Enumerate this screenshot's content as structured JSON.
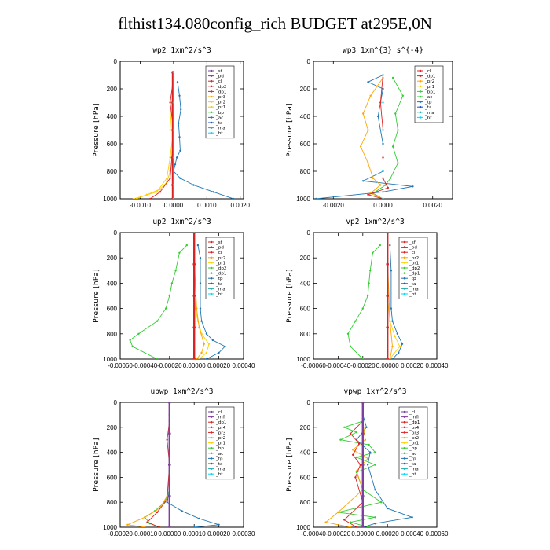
{
  "title": "flthist134.080config_rich  BUDGET at295E,0N",
  "chart_data": [
    {
      "type": "line",
      "title": "wp2  1xm^2/s^3",
      "ylabel": "Pressure [hPa]",
      "ylim": [
        1000,
        0
      ],
      "yticks": [
        0,
        200,
        400,
        600,
        800,
        1000
      ],
      "xlim": [
        -0.0016,
        0.0021
      ],
      "xticks": [
        -0.001,
        0.0,
        0.001,
        0.002
      ],
      "xticklabels": [
        "-0.0010",
        "0.0000",
        "0.0010",
        "0.0020"
      ],
      "legend": [
        "_sf",
        "_pd",
        "_cl",
        "_dp2",
        "_dp1",
        "_pr3",
        "_pr2",
        "_pr1",
        "_bp",
        "_ac",
        "_ta",
        "_ma",
        "_bt"
      ],
      "colors": [
        "#7f3f9f",
        "#7f3f9f",
        "#dd2222",
        "#dd2222",
        "#dd2222",
        "#ffa500",
        "#ffd200",
        "#ffc800",
        "#33cc33",
        "#1f77b4",
        "#1f4fd0",
        "#20b0b0",
        "#00d8ff"
      ],
      "series": [
        {
          "name": "_ac",
          "x": [
            0.00012,
            0.00018,
            0.00022,
            0.00015,
            0.00018,
            0.0002,
            0.0001,
            5e-05,
            0.0,
            0.0002,
            0.0006,
            0.0012,
            0.0018
          ],
          "y": [
            150,
            250,
            350,
            450,
            550,
            650,
            700,
            750,
            800,
            850,
            900,
            950,
            1000
          ]
        },
        {
          "name": "_pr1",
          "x": [
            0.0,
            0.0,
            0.0,
            -0.0001,
            -0.0001,
            -0.0002,
            -0.0004,
            -0.0008,
            -0.0011
          ],
          "y": [
            120,
            300,
            500,
            700,
            800,
            880,
            930,
            970,
            1000
          ]
        },
        {
          "name": "_pr2",
          "x": [
            0.0,
            -5e-05,
            -0.0001,
            -0.0001,
            -0.0002,
            -0.0005,
            -0.0012
          ],
          "y": [
            120,
            300,
            500,
            700,
            850,
            950,
            1000
          ]
        },
        {
          "name": "_dp1",
          "x": [
            0.0,
            -0.0001,
            0.0,
            -5e-05,
            -0.0001,
            -0.0004,
            -0.0007
          ],
          "y": [
            120,
            300,
            500,
            700,
            850,
            950,
            1000
          ]
        },
        {
          "name": "_cl",
          "x": [
            -2e-05,
            -2e-05,
            -2e-05,
            -2e-05,
            -2e-05,
            -2e-05
          ],
          "y": [
            80,
            300,
            500,
            700,
            900,
            1000
          ]
        },
        {
          "name": "_bt",
          "x": [
            0.0,
            0.0,
            0.0,
            0.0,
            0.0,
            0.0
          ],
          "y": [
            80,
            300,
            500,
            700,
            900,
            1000
          ]
        }
      ]
    },
    {
      "type": "line",
      "title": "wp3  1xm^{3} s^{-4}",
      "ylabel": "Pressure [hPa]",
      "ylim": [
        1000,
        0
      ],
      "yticks": [
        0,
        200,
        400,
        600,
        800,
        1000
      ],
      "xlim": [
        -0.0028,
        0.0028
      ],
      "xticks": [
        -0.002,
        0.0,
        0.002
      ],
      "xticklabels": [
        "-0.0020",
        "0.0000",
        "0.0020"
      ],
      "legend": [
        "_cl",
        "_dp1",
        "_pr2",
        "_pr1",
        "_bp1",
        "_ac",
        "_tp",
        "_ta",
        "_ma",
        "_bt"
      ],
      "colors": [
        "#dd2222",
        "#dd2222",
        "#ffa500",
        "#ffd200",
        "#33cc33",
        "#33cc33",
        "#1f77b4",
        "#1f4fd0",
        "#20b0b0",
        "#00d8ff"
      ],
      "series": [
        {
          "name": "_ac",
          "x": [
            0.0004,
            0.0008,
            0.0005,
            0.0006,
            0.0004,
            0.0006,
            0.0003,
            0.0001,
            -0.0004,
            0.0
          ],
          "y": [
            120,
            250,
            380,
            500,
            620,
            740,
            850,
            900,
            960,
            1000
          ]
        },
        {
          "name": "_tp",
          "x": [
            0.0,
            -0.0006,
            0.0,
            -0.0002,
            0.0,
            0.0,
            -0.0008,
            0.0012,
            0.0,
            -0.0027
          ],
          "y": [
            100,
            150,
            200,
            400,
            600,
            800,
            870,
            910,
            950,
            1000
          ]
        },
        {
          "name": "_pr2",
          "x": [
            0.0,
            -0.0005,
            -0.0008,
            -0.0006,
            -0.0009,
            -0.0006,
            -0.0004,
            -0.0001,
            -0.0005,
            0.0
          ],
          "y": [
            120,
            250,
            380,
            500,
            620,
            740,
            850,
            900,
            960,
            1000
          ]
        },
        {
          "name": "_dp1",
          "x": [
            0.0,
            -0.0001,
            0.0,
            0.0,
            0.0,
            0.0002,
            -0.0006,
            0.0
          ],
          "y": [
            100,
            300,
            500,
            700,
            850,
            920,
            970,
            1000
          ]
        },
        {
          "name": "_bt",
          "x": [
            0.0,
            0.0,
            0.0,
            0.0,
            0.0
          ],
          "y": [
            100,
            300,
            500,
            800,
            1000
          ]
        }
      ]
    },
    {
      "type": "line",
      "title": "up2  1xm^2/s^3",
      "ylabel": "Pressure [hPa]",
      "ylim": [
        1000,
        0
      ],
      "yticks": [
        0,
        200,
        400,
        600,
        800,
        1000
      ],
      "xlim": [
        -0.0006,
        0.0004
      ],
      "xticks": [
        -0.0006,
        -0.0004,
        -0.0002,
        0.0,
        0.0002,
        0.0004
      ],
      "xticklabels": [
        "-0.00060",
        "-0.00040",
        "-0.00020",
        "0.00000",
        "0.00020",
        "0.00040"
      ],
      "legend": [
        "_sf",
        "_pd",
        "_cl",
        "_pr2",
        "_pr1",
        "_dp2",
        "_dp1",
        "_tp",
        "_ta",
        "_ma",
        "_bt"
      ],
      "colors": [
        "#dd2222",
        "#dd2222",
        "#dd2222",
        "#ffa500",
        "#ffd200",
        "#33cc33",
        "#33cc33",
        "#1f77b4",
        "#1f4fd0",
        "#20b0b0",
        "#00d8ff"
      ],
      "series": [
        {
          "name": "_dp2",
          "x": [
            -6e-05,
            -0.00012,
            -0.00015,
            -0.00018,
            -0.0002,
            -0.00023,
            -0.0003,
            -0.00045,
            -0.00052,
            -0.0005,
            -0.0003
          ],
          "y": [
            100,
            160,
            300,
            400,
            500,
            600,
            700,
            800,
            850,
            900,
            1000
          ]
        },
        {
          "name": "_tp",
          "x": [
            3e-05,
            5e-05,
            5e-05,
            5e-05,
            6e-05,
            0.0001,
            0.00015,
            0.00025,
            0.0002,
            0.0001
          ],
          "y": [
            100,
            200,
            400,
            600,
            700,
            800,
            850,
            900,
            950,
            1000
          ]
        },
        {
          "name": "_pr1",
          "x": [
            0.0,
            0.0,
            1e-05,
            3e-05,
            6e-05,
            0.00012,
            0.0001,
            4e-05
          ],
          "y": [
            100,
            400,
            600,
            700,
            800,
            880,
            950,
            1000
          ]
        },
        {
          "name": "_pr2",
          "x": [
            0.0,
            2e-05,
            4e-05,
            8e-05,
            6e-05,
            2e-05
          ],
          "y": [
            200,
            600,
            750,
            880,
            950,
            1000
          ]
        },
        {
          "name": "_cl",
          "x": [
            0.0,
            0.0,
            0.0,
            0.0,
            0.0
          ],
          "y": [
            0,
            250,
            500,
            750,
            1000
          ]
        }
      ]
    },
    {
      "type": "line",
      "title": "vp2  1xm^2/s^3",
      "ylabel": "Pressure [hPa]",
      "ylim": [
        1000,
        0
      ],
      "yticks": [
        0,
        200,
        400,
        600,
        800,
        1000
      ],
      "xlim": [
        -0.0006,
        0.0004
      ],
      "xticks": [
        -0.0006,
        -0.0004,
        -0.0002,
        0.0,
        0.0002,
        0.0004
      ],
      "xticklabels": [
        "-0.00060",
        "-0.00040",
        "-0.00020",
        "0.00000",
        "0.00020",
        "0.00040"
      ],
      "legend": [
        "_sf",
        "_pd",
        "_cl",
        "_pr2",
        "_pr1",
        "_dp2",
        "_dp1",
        "_tp",
        "_ta",
        "_ma",
        "_bt"
      ],
      "colors": [
        "#dd2222",
        "#dd2222",
        "#dd2222",
        "#ffa500",
        "#ffd200",
        "#33cc33",
        "#33cc33",
        "#1f77b4",
        "#1f4fd0",
        "#20b0b0",
        "#00d8ff"
      ],
      "series": [
        {
          "name": "_dp2",
          "x": [
            -6e-05,
            -0.00012,
            -0.00014,
            -0.00015,
            -0.00016,
            -0.0002,
            -0.00026,
            -0.00032,
            -0.0003,
            -0.0002
          ],
          "y": [
            100,
            160,
            300,
            400,
            500,
            600,
            700,
            800,
            900,
            1000
          ]
        },
        {
          "name": "_tp",
          "x": [
            2e-05,
            3e-05,
            3e-05,
            4e-05,
            8e-05,
            0.00012,
            9e-05,
            4e-05
          ],
          "y": [
            100,
            300,
            600,
            700,
            800,
            880,
            950,
            1000
          ]
        },
        {
          "name": "_pr1",
          "x": [
            0.0,
            0.0,
            2e-05,
            6e-05,
            0.0001,
            5e-05,
            2e-05
          ],
          "y": [
            100,
            500,
            700,
            820,
            900,
            960,
            1000
          ]
        },
        {
          "name": "_pr2",
          "x": [
            0.0,
            2e-05,
            4e-05,
            2e-05
          ],
          "y": [
            200,
            700,
            900,
            1000
          ]
        },
        {
          "name": "_cl",
          "x": [
            0.0,
            0.0,
            0.0,
            0.0,
            0.0
          ],
          "y": [
            0,
            250,
            500,
            750,
            1000
          ]
        }
      ]
    },
    {
      "type": "line",
      "title": "upwp  1xm^2/s^3",
      "ylabel": "Pressure [hPa]",
      "ylim": [
        1000,
        0
      ],
      "yticks": [
        0,
        200,
        400,
        600,
        800,
        1000
      ],
      "xlim": [
        -0.0002,
        0.0003
      ],
      "xticks": [
        -0.0002,
        -0.0001,
        0.0,
        0.0001,
        0.0002,
        0.0003
      ],
      "xticklabels": [
        "-0.00020",
        "-0.00010",
        "0.00000",
        "0.00010",
        "0.00020",
        "0.00030"
      ],
      "legend": [
        "_cl",
        "_mfl",
        "_dp1",
        "_pr4",
        "_pr3",
        "_pr2",
        "_pr1",
        "_bp",
        "_ac",
        "_tp",
        "_ta",
        "_ma",
        "_bt"
      ],
      "colors": [
        "#7f3f9f",
        "#7f3f9f",
        "#dd2222",
        "#dd2222",
        "#dd2222",
        "#ffa500",
        "#ffd200",
        "#33cc33",
        "#33cc33",
        "#1f77b4",
        "#1f4fd0",
        "#20b0b0",
        "#00d8ff"
      ],
      "series": [
        {
          "name": "_tp",
          "x": [
            0.0,
            0.0,
            0.0,
            0.0,
            -1e-05,
            5e-05,
            0.00012,
            0.0002,
            0.0001
          ],
          "y": [
            100,
            300,
            500,
            700,
            800,
            870,
            930,
            980,
            1000
          ]
        },
        {
          "name": "_bp",
          "x": [
            0.0,
            0.0,
            0.0,
            -2e-05,
            -6e-05,
            -0.0001,
            -8e-05,
            -4e-05
          ],
          "y": [
            100,
            400,
            700,
            800,
            870,
            920,
            970,
            1000
          ]
        },
        {
          "name": "_pr2",
          "x": [
            0.0,
            0.0,
            -1e-05,
            -4e-05,
            -0.0001,
            -0.00017,
            -0.0001
          ],
          "y": [
            100,
            500,
            750,
            850,
            920,
            980,
            1000
          ]
        },
        {
          "name": "_dp1",
          "x": [
            0.0,
            -1e-05,
            0.0,
            -1e-05,
            -5e-05,
            -9e-05,
            -4e-05
          ],
          "y": [
            150,
            300,
            500,
            780,
            880,
            960,
            1000
          ]
        },
        {
          "name": "_cl",
          "x": [
            0.0,
            0.0,
            0.0,
            0.0,
            0.0
          ],
          "y": [
            0,
            250,
            500,
            750,
            1000
          ]
        }
      ]
    },
    {
      "type": "line",
      "title": "vpwp  1xm^2/s^3",
      "ylabel": "Pressure [hPa]",
      "ylim": [
        1000,
        0
      ],
      "yticks": [
        0,
        200,
        400,
        600,
        800,
        1000
      ],
      "xlim": [
        -0.0004,
        0.0006
      ],
      "xticks": [
        -0.0004,
        -0.0002,
        0.0,
        0.0002,
        0.0004,
        0.0006
      ],
      "xticklabels": [
        "-0.00040",
        "-0.00020",
        "0.00000",
        "0.00020",
        "0.00040",
        "0.00060"
      ],
      "legend": [
        "_cl",
        "_mfl",
        "_dp1",
        "_pr4",
        "_pr3",
        "_pr2",
        "_pr1",
        "_bp",
        "_ac",
        "_tp",
        "_ta",
        "_ma",
        "_bt"
      ],
      "colors": [
        "#7f3f9f",
        "#7f3f9f",
        "#dd2222",
        "#dd2222",
        "#dd2222",
        "#ffa500",
        "#ffd200",
        "#33cc33",
        "#33cc33",
        "#1f77b4",
        "#1f4fd0",
        "#20b0b0",
        "#00d8ff"
      ],
      "series": [
        {
          "name": "_bp",
          "x": [
            0.0,
            -0.00015,
            -5e-05,
            -0.00018,
            5e-05,
            0.0001,
            -5e-05,
            0.0001,
            -5e-05,
            0.0,
            0.00015,
            -0.0002,
            0.0001,
            -0.0001,
            5e-05
          ],
          "y": [
            150,
            200,
            240,
            300,
            340,
            400,
            440,
            500,
            560,
            700,
            800,
            880,
            920,
            960,
            1000
          ]
        },
        {
          "name": "_tp",
          "x": [
            0.0,
            3e-05,
            -5e-05,
            6e-05,
            4e-05,
            0.0001,
            0.0002,
            0.0004,
            0.0001,
            0.0
          ],
          "y": [
            100,
            200,
            300,
            400,
            500,
            700,
            850,
            920,
            970,
            1000
          ]
        },
        {
          "name": "_pr2",
          "x": [
            0.0,
            2e-05,
            -8e-05,
            4e-05,
            -5e-05,
            0.0,
            -0.0002,
            -0.0003,
            -0.0001
          ],
          "y": [
            150,
            300,
            380,
            450,
            550,
            700,
            880,
            960,
            1000
          ]
        },
        {
          "name": "_dp1",
          "x": [
            0.0,
            -0.0001,
            -3e-05,
            -8e-05,
            -2e-05,
            -6e-05,
            0.0,
            -0.00015,
            -5e-05
          ],
          "y": [
            150,
            250,
            330,
            420,
            500,
            600,
            800,
            940,
            1000
          ]
        },
        {
          "name": "_cl",
          "x": [
            0.0,
            0.0,
            0.0,
            0.0,
            0.0
          ],
          "y": [
            0,
            250,
            500,
            750,
            1000
          ]
        }
      ]
    }
  ]
}
